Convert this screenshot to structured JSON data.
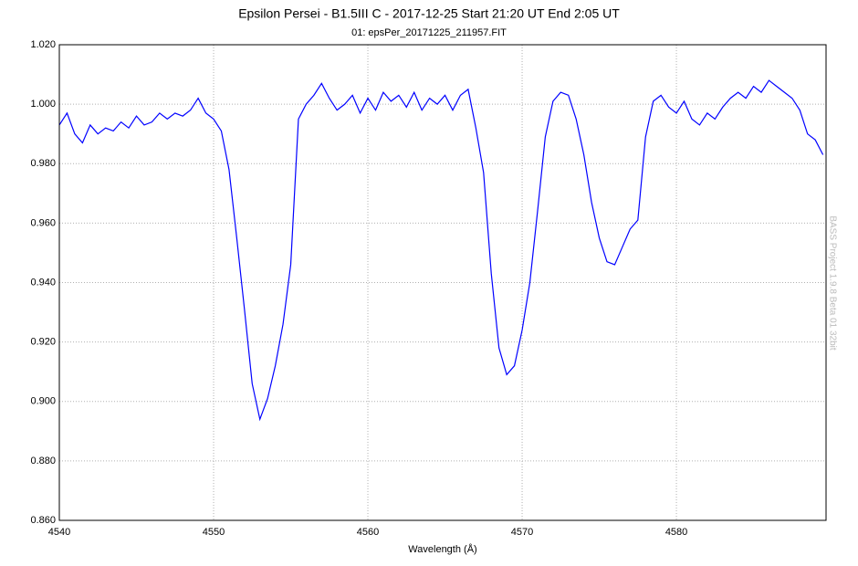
{
  "chart_data": {
    "type": "line",
    "title": "Epsilon Persei - B1.5III C - 2017-12-25 Start 21:20 UT End  2:05 UT",
    "subtitle": "01: epsPer_20171225_211957.FIT",
    "x_label": "Wavelength (Å)",
    "watermark": "BASS Project 1.9.8 Beta 01 32bit",
    "color": "#0000ff",
    "grid": true,
    "xlim": [
      4540,
      4589.7
    ],
    "xticks": [
      4540,
      4550,
      4560,
      4570,
      4580
    ],
    "ylim": [
      0.86,
      1.02
    ],
    "yticks": [
      {
        "value": 0.86,
        "label": "0.860"
      },
      {
        "value": 0.88,
        "label": "0.880"
      },
      {
        "value": 0.9,
        "label": "0.900"
      },
      {
        "value": 0.92,
        "label": "0.920"
      },
      {
        "value": 0.94,
        "label": "0.940"
      },
      {
        "value": 0.96,
        "label": "0.960"
      },
      {
        "value": 0.98,
        "label": "0.980"
      },
      {
        "value": 1.0,
        "label": "1.000"
      },
      {
        "value": 1.02,
        "label": "1.020"
      }
    ],
    "x": [
      4540,
      4540.5,
      4541,
      4541.5,
      4542,
      4542.5,
      4543,
      4543.5,
      4544,
      4544.5,
      4545,
      4545.5,
      4546,
      4546.5,
      4547,
      4547.5,
      4548,
      4548.5,
      4549,
      4549.5,
      4550,
      4550.5,
      4551,
      4551.5,
      4552,
      4552.5,
      4553,
      4553.5,
      4554,
      4554.5,
      4555,
      4555.5,
      4556,
      4556.5,
      4557,
      4557.5,
      4558,
      4558.5,
      4559,
      4559.5,
      4560,
      4560.5,
      4561,
      4561.5,
      4562,
      4562.5,
      4563,
      4563.5,
      4564,
      4564.5,
      4565,
      4565.5,
      4566,
      4566.5,
      4567,
      4567.5,
      4568,
      4568.5,
      4569,
      4569.5,
      4570,
      4570.5,
      4571,
      4571.5,
      4572,
      4572.5,
      4573,
      4573.5,
      4574,
      4574.5,
      4575,
      4575.5,
      4576,
      4576.5,
      4577,
      4577.5,
      4578,
      4578.5,
      4579,
      4579.5,
      4580,
      4580.5,
      4581,
      4581.5,
      4582,
      4582.5,
      4583,
      4583.5,
      4584,
      4584.5,
      4585,
      4585.5,
      4586,
      4586.5,
      4587,
      4587.5,
      4588,
      4588.5,
      4589,
      4589.5
    ],
    "values": [
      0.993,
      0.997,
      0.99,
      0.987,
      0.993,
      0.99,
      0.992,
      0.991,
      0.994,
      0.992,
      0.996,
      0.993,
      0.994,
      0.997,
      0.995,
      0.997,
      0.996,
      0.998,
      1.002,
      0.997,
      0.995,
      0.991,
      0.978,
      0.955,
      0.931,
      0.906,
      0.894,
      0.901,
      0.912,
      0.926,
      0.946,
      0.995,
      1.0,
      1.003,
      1.007,
      1.002,
      0.998,
      1.0,
      1.003,
      0.997,
      1.002,
      0.998,
      1.004,
      1.001,
      1.003,
      0.999,
      1.004,
      0.998,
      1.002,
      1.0,
      1.003,
      0.998,
      1.003,
      1.005,
      0.992,
      0.977,
      0.943,
      0.918,
      0.909,
      0.912,
      0.924,
      0.94,
      0.964,
      0.989,
      1.001,
      1.004,
      1.003,
      0.995,
      0.983,
      0.967,
      0.955,
      0.947,
      0.946,
      0.952,
      0.958,
      0.961,
      0.989,
      1.001,
      1.003,
      0.999,
      0.997,
      1.001,
      0.995,
      0.993,
      0.997,
      0.995,
      0.999,
      1.002,
      1.004,
      1.002,
      1.006,
      1.004,
      1.008,
      1.006,
      1.004,
      1.002,
      0.998,
      0.99,
      0.988,
      0.983
    ]
  }
}
